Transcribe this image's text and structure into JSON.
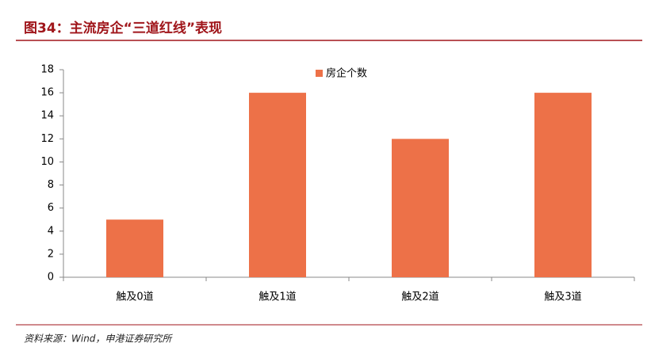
{
  "header": {
    "title": "图34：主流房企“三道红线”表现"
  },
  "chart_data": {
    "type": "bar",
    "categories": [
      "触及0道",
      "触及1道",
      "触及2道",
      "触及3道"
    ],
    "series": [
      {
        "name": "房企个数",
        "color": "#ed7148",
        "values": [
          5,
          16,
          12,
          16
        ]
      }
    ],
    "ylim": [
      0,
      18
    ],
    "yticks": [
      0,
      2,
      4,
      6,
      8,
      10,
      12,
      14,
      16,
      18
    ],
    "legend": "top"
  },
  "footer": {
    "source": "资料来源：Wind，申港证券研究所"
  }
}
